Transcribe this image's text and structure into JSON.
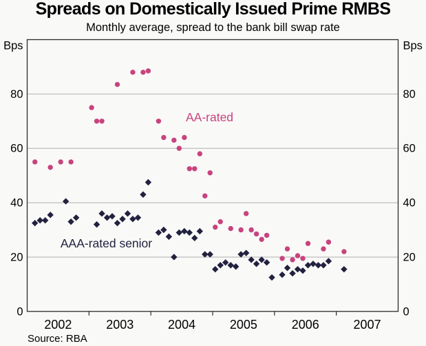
{
  "title": "Spreads on Domestically Issued Prime RMBS",
  "subtitle": "Monthly average, spread to the bank bill swap rate",
  "source_note": "Source: RBA",
  "theme": {
    "background": "#f9f9f8",
    "frame_color": "#2b2b2b",
    "grid_color": "#b0b0b0",
    "text_color": "#000000",
    "aa_pink": "#c8437e",
    "aaa_navy": "#22213f"
  },
  "chart_data": {
    "type": "scatter",
    "title": "Spreads on Domestically Issued Prime RMBS",
    "subtitle": "Monthly average, spread to the bank bill swap rate",
    "unit": "Bps",
    "grid": true,
    "x_axis": {
      "min": 2002,
      "max": 2008,
      "tick_years": [
        2003,
        2004,
        2005,
        2006,
        2007
      ],
      "year_labels": [
        "2002",
        "2003",
        "2004",
        "2005",
        "2006",
        "2007"
      ]
    },
    "y_axis": {
      "min": 0,
      "max": 100,
      "ticks": [
        0,
        20,
        40,
        60,
        80
      ],
      "unit_label": "Bps",
      "labels_both_sides": true
    },
    "series": [
      {
        "name": "AA-rated",
        "marker": "circle",
        "color": "#c8437e",
        "points": [
          [
            2002.125,
            55
          ],
          [
            2002.375,
            53
          ],
          [
            2002.542,
            55
          ],
          [
            2002.708,
            55
          ],
          [
            2003.042,
            75
          ],
          [
            2003.125,
            70
          ],
          [
            2003.208,
            70
          ],
          [
            2003.458,
            83.5
          ],
          [
            2003.708,
            88
          ],
          [
            2003.875,
            88
          ],
          [
            2003.958,
            88.5
          ],
          [
            2004.125,
            70
          ],
          [
            2004.208,
            64
          ],
          [
            2004.375,
            63
          ],
          [
            2004.458,
            60
          ],
          [
            2004.542,
            64
          ],
          [
            2004.625,
            52.5
          ],
          [
            2004.708,
            52.5
          ],
          [
            2004.792,
            58
          ],
          [
            2004.875,
            42.5
          ],
          [
            2004.958,
            51
          ],
          [
            2005.042,
            31
          ],
          [
            2005.125,
            33
          ],
          [
            2005.292,
            30.5
          ],
          [
            2005.458,
            30
          ],
          [
            2005.542,
            36
          ],
          [
            2005.625,
            30
          ],
          [
            2005.708,
            28.5
          ],
          [
            2005.792,
            26.5
          ],
          [
            2005.875,
            28
          ],
          [
            2006.125,
            19.5
          ],
          [
            2006.208,
            23
          ],
          [
            2006.292,
            19
          ],
          [
            2006.375,
            20.5
          ],
          [
            2006.458,
            19.5
          ],
          [
            2006.542,
            25
          ],
          [
            2006.792,
            23
          ],
          [
            2006.875,
            25.5
          ],
          [
            2007.125,
            22
          ]
        ]
      },
      {
        "name": "AAA-rated senior",
        "marker": "diamond",
        "color": "#22213f",
        "points": [
          [
            2002.125,
            32.5
          ],
          [
            2002.208,
            33.5
          ],
          [
            2002.292,
            33.5
          ],
          [
            2002.375,
            35.5
          ],
          [
            2002.625,
            40.5
          ],
          [
            2002.708,
            33
          ],
          [
            2002.792,
            34.5
          ],
          [
            2003.125,
            32
          ],
          [
            2003.208,
            36
          ],
          [
            2003.292,
            34.5
          ],
          [
            2003.375,
            35
          ],
          [
            2003.458,
            32.5
          ],
          [
            2003.542,
            34
          ],
          [
            2003.625,
            36
          ],
          [
            2003.708,
            34
          ],
          [
            2003.792,
            34.5
          ],
          [
            2003.875,
            43
          ],
          [
            2003.958,
            47.5
          ],
          [
            2004.125,
            29
          ],
          [
            2004.208,
            30
          ],
          [
            2004.292,
            27.5
          ],
          [
            2004.375,
            20
          ],
          [
            2004.458,
            29
          ],
          [
            2004.542,
            29.5
          ],
          [
            2004.625,
            29
          ],
          [
            2004.708,
            27
          ],
          [
            2004.792,
            29.5
          ],
          [
            2004.875,
            21
          ],
          [
            2004.958,
            21
          ],
          [
            2005.042,
            15.5
          ],
          [
            2005.125,
            17
          ],
          [
            2005.208,
            18
          ],
          [
            2005.292,
            17
          ],
          [
            2005.375,
            16.5
          ],
          [
            2005.458,
            21
          ],
          [
            2005.542,
            21.5
          ],
          [
            2005.625,
            19
          ],
          [
            2005.708,
            17.5
          ],
          [
            2005.792,
            19
          ],
          [
            2005.875,
            18
          ],
          [
            2005.958,
            12.5
          ],
          [
            2006.125,
            13.5
          ],
          [
            2006.208,
            16
          ],
          [
            2006.292,
            14
          ],
          [
            2006.375,
            15.5
          ],
          [
            2006.458,
            15
          ],
          [
            2006.542,
            17
          ],
          [
            2006.625,
            17.5
          ],
          [
            2006.708,
            17
          ],
          [
            2006.792,
            17
          ],
          [
            2006.875,
            18.5
          ],
          [
            2007.125,
            15.5
          ]
        ]
      }
    ],
    "annotations": [
      {
        "text": "AA-rated",
        "x": 2004.95,
        "y": 71.5,
        "series": 0
      },
      {
        "text": "AAA-rated senior",
        "x": 2003.28,
        "y": 25,
        "series": 1
      }
    ]
  }
}
